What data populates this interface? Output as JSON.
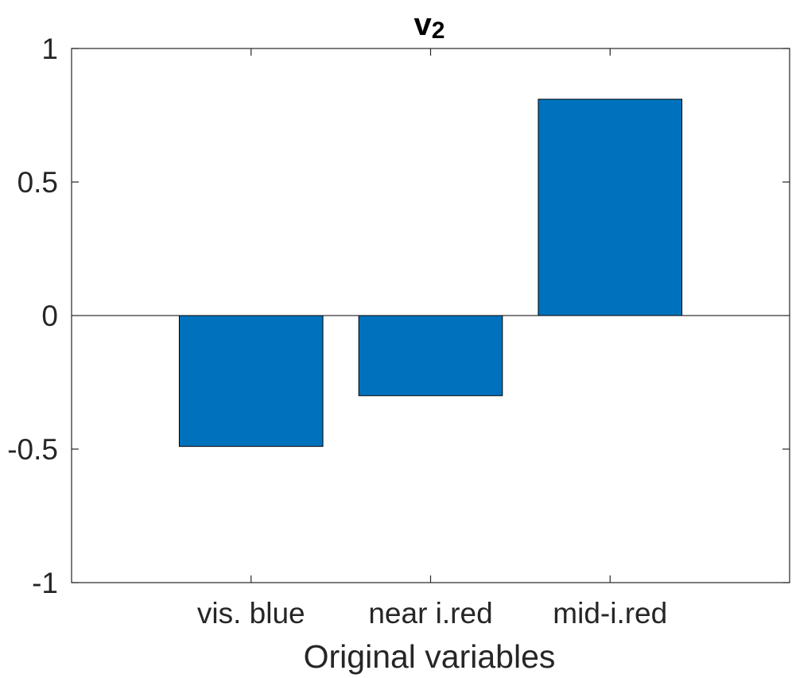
{
  "chart_data": {
    "type": "bar",
    "title": "v",
    "title_subscript": "2",
    "xlabel": "Original variables",
    "ylabel": "",
    "categories": [
      "vis. blue",
      "near i.red",
      "mid-i.red"
    ],
    "values": [
      -0.49,
      -0.3,
      0.81
    ],
    "ylim": [
      -1,
      1
    ],
    "yticks": [
      -1,
      -0.5,
      0,
      0.5,
      1
    ],
    "ytick_labels": [
      "-1",
      "-0.5",
      "0",
      "0.5",
      "1"
    ],
    "xlim": [
      0,
      4
    ],
    "grid": false,
    "box": true,
    "colors": {
      "bar": "#0072BD",
      "axis": "#262626"
    }
  }
}
